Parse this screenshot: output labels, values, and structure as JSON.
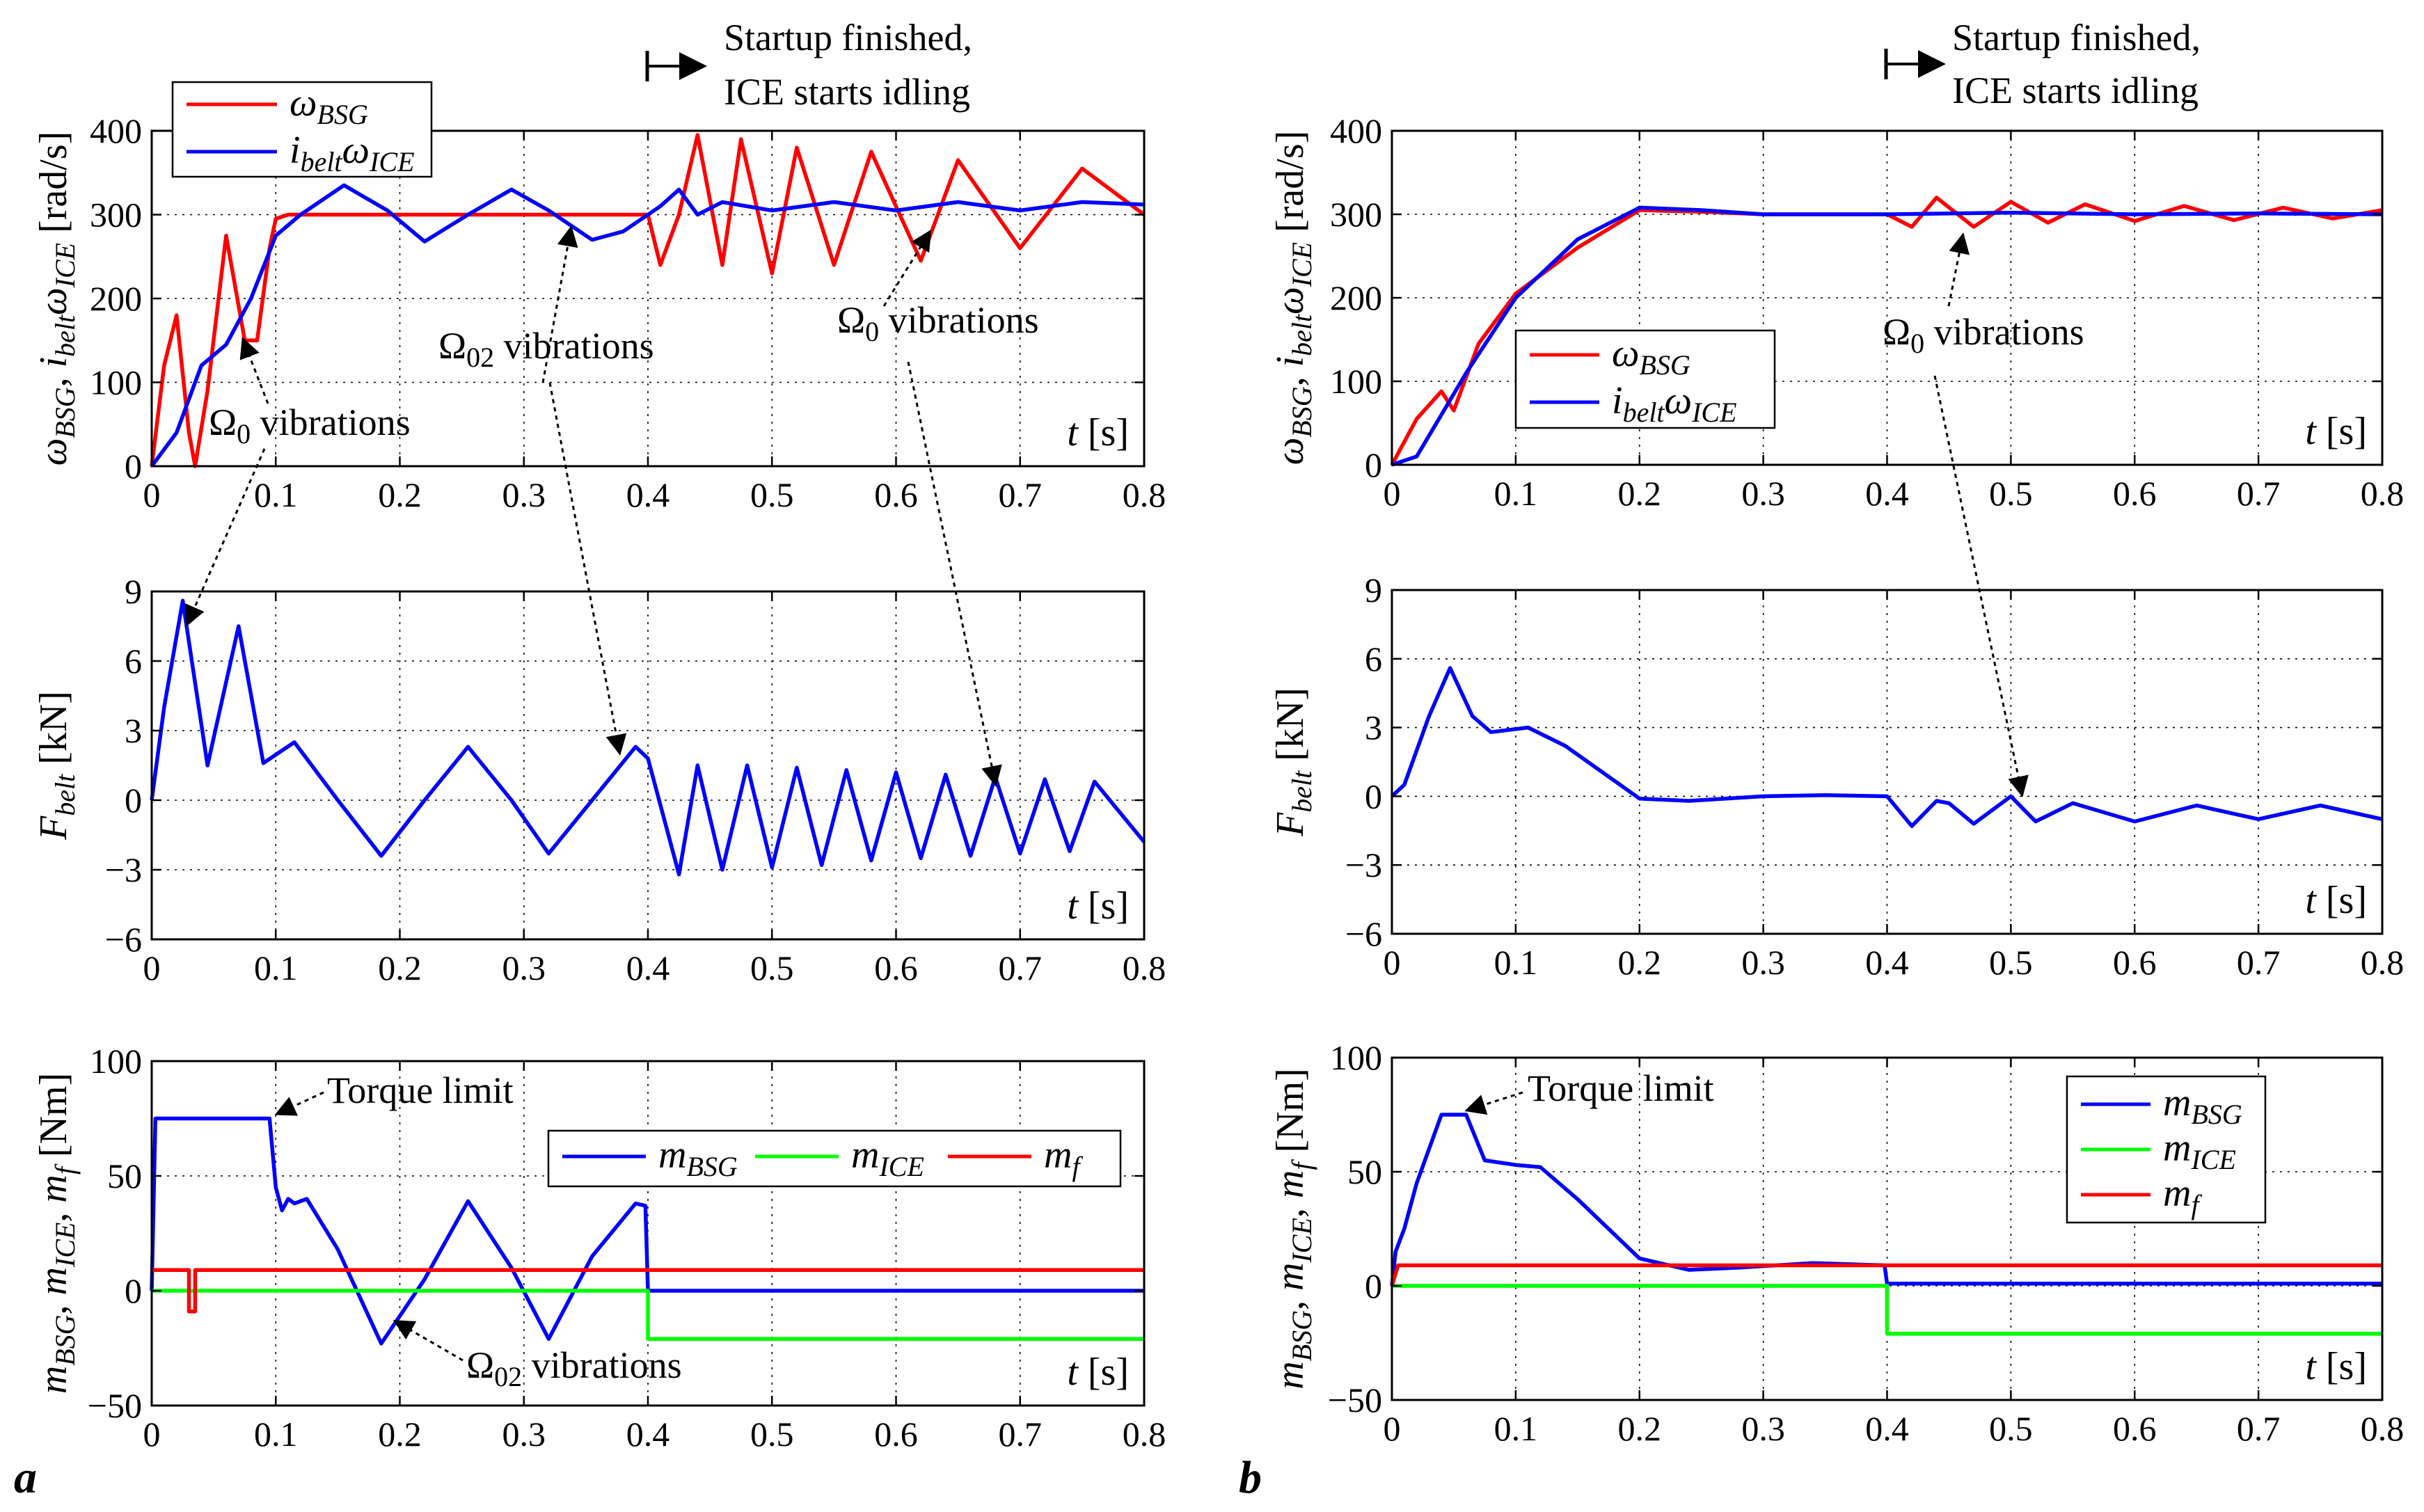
{
  "chart_data": [
    {
      "panel": "a",
      "type": "line",
      "title": "",
      "xlabel": "t [s]",
      "ylabel": "ωBSG, ibeltωICE [rad/s]",
      "xlim": [
        0,
        0.8
      ],
      "ylim": [
        0,
        400
      ],
      "xticks": [
        "0",
        "0.1",
        "0.2",
        "0.3",
        "0.4",
        "0.5",
        "0.6",
        "0.7",
        "0.8"
      ],
      "yticks": [
        "0",
        "100",
        "200",
        "300",
        "400"
      ],
      "grid": true,
      "legend": "top-left",
      "colors": {
        "red": "#ff0000",
        "blue": "#0000ff"
      },
      "series": [
        {
          "name": "ωBSG",
          "color": "#ff0000",
          "x": [
            0,
            0.01,
            0.02,
            0.03,
            0.035,
            0.045,
            0.06,
            0.075,
            0.085,
            0.095,
            0.1,
            0.11,
            0.2,
            0.3,
            0.395,
            0.4,
            0.41,
            0.425,
            0.44,
            0.46,
            0.475,
            0.5,
            0.52,
            0.55,
            0.58,
            0.62,
            0.65,
            0.7,
            0.75,
            0.8
          ],
          "values": [
            0,
            120,
            180,
            40,
            0,
            90,
            275,
            150,
            150,
            260,
            295,
            300,
            300,
            300,
            300,
            300,
            240,
            300,
            395,
            240,
            390,
            230,
            380,
            240,
            375,
            245,
            365,
            260,
            355,
            300
          ]
        },
        {
          "name": "ibeltωICE",
          "color": "#0000ff",
          "x": [
            0,
            0.02,
            0.04,
            0.06,
            0.08,
            0.1,
            0.12,
            0.155,
            0.19,
            0.22,
            0.255,
            0.29,
            0.32,
            0.355,
            0.38,
            0.4,
            0.41,
            0.425,
            0.44,
            0.46,
            0.5,
            0.55,
            0.6,
            0.65,
            0.7,
            0.75,
            0.8
          ],
          "values": [
            0,
            40,
            120,
            145,
            200,
            275,
            300,
            335,
            305,
            268,
            300,
            330,
            305,
            270,
            280,
            300,
            310,
            330,
            300,
            315,
            305,
            315,
            305,
            315,
            305,
            315,
            312
          ]
        }
      ],
      "annotations": [
        "Startup finished,",
        "ICE starts idling",
        "Ω0 vibrations",
        "Ω02 vibrations",
        "Ω0 vibrations"
      ]
    },
    {
      "panel": "a",
      "type": "line",
      "xlabel": "t [s]",
      "ylabel": "Fbelt [kN]",
      "xlim": [
        0,
        0.8
      ],
      "ylim": [
        -6,
        9
      ],
      "xticks": [
        "0",
        "0.1",
        "0.2",
        "0.3",
        "0.4",
        "0.5",
        "0.6",
        "0.7",
        "0.8"
      ],
      "yticks": [
        "−6",
        "−3",
        "0",
        "3",
        "6",
        "9"
      ],
      "grid": true,
      "series": [
        {
          "name": "Fbelt",
          "color": "#0000ff",
          "x": [
            0,
            0.01,
            0.025,
            0.045,
            0.07,
            0.09,
            0.115,
            0.15,
            0.185,
            0.22,
            0.255,
            0.29,
            0.32,
            0.355,
            0.39,
            0.4,
            0.425,
            0.44,
            0.46,
            0.48,
            0.5,
            0.52,
            0.54,
            0.56,
            0.58,
            0.6,
            0.62,
            0.64,
            0.66,
            0.68,
            0.7,
            0.72,
            0.74,
            0.76,
            0.8
          ],
          "values": [
            0,
            4,
            8.6,
            1.5,
            7.5,
            1.6,
            2.5,
            0,
            -2.4,
            0,
            2.3,
            0,
            -2.3,
            0,
            2.3,
            1.8,
            -3.2,
            1.5,
            -3,
            1.5,
            -2.9,
            1.4,
            -2.8,
            1.3,
            -2.6,
            1.2,
            -2.5,
            1.1,
            -2.4,
            1,
            -2.3,
            0.9,
            -2.2,
            0.8,
            -1.8
          ]
        }
      ]
    },
    {
      "panel": "a",
      "type": "line",
      "xlabel": "t [s]",
      "ylabel": "mBSG, mICE, mf [Nm]",
      "xlim": [
        0,
        0.8
      ],
      "ylim": [
        -50,
        100
      ],
      "xticks": [
        "0",
        "0.1",
        "0.2",
        "0.3",
        "0.4",
        "0.5",
        "0.6",
        "0.7",
        "0.8"
      ],
      "yticks": [
        "−50",
        "0",
        "50",
        "100"
      ],
      "grid": true,
      "legend": "center-right",
      "series": [
        {
          "name": "mBSG",
          "color": "#0000ff",
          "x": [
            0,
            0.003,
            0.095,
            0.1,
            0.105,
            0.11,
            0.115,
            0.125,
            0.15,
            0.185,
            0.22,
            0.255,
            0.29,
            0.32,
            0.355,
            0.39,
            0.398,
            0.4,
            0.8
          ],
          "values": [
            0,
            75,
            75,
            45,
            35,
            40,
            38,
            40,
            18,
            -23,
            5,
            39,
            10,
            -21,
            15,
            38,
            37,
            0,
            0
          ]
        },
        {
          "name": "mICE",
          "color": "#00ff00",
          "x": [
            0,
            0.4,
            0.4,
            0.8
          ],
          "values": [
            0,
            0,
            -21,
            -21
          ]
        },
        {
          "name": "mf",
          "color": "#ff0000",
          "x": [
            0,
            0.03,
            0.03,
            0.035,
            0.035,
            0.8
          ],
          "values": [
            9,
            9,
            -9,
            -9,
            9,
            9
          ]
        }
      ],
      "annotations": [
        "Torque limit",
        "Ω02 vibrations"
      ]
    },
    {
      "panel": "b",
      "type": "line",
      "xlabel": "t [s]",
      "ylabel": "ωBSG, ibeltωICE [rad/s]",
      "xlim": [
        0,
        0.8
      ],
      "ylim": [
        0,
        400
      ],
      "xticks": [
        "0",
        "0.1",
        "0.2",
        "0.3",
        "0.4",
        "0.5",
        "0.6",
        "0.7",
        "0.8"
      ],
      "yticks": [
        "0",
        "100",
        "200",
        "300",
        "400"
      ],
      "grid": true,
      "legend": "center-left",
      "series": [
        {
          "name": "ωBSG",
          "color": "#ff0000",
          "x": [
            0,
            0.02,
            0.04,
            0.05,
            0.07,
            0.1,
            0.15,
            0.2,
            0.25,
            0.3,
            0.4,
            0.42,
            0.44,
            0.47,
            0.5,
            0.53,
            0.56,
            0.6,
            0.64,
            0.68,
            0.72,
            0.76,
            0.8
          ],
          "values": [
            0,
            55,
            88,
            65,
            145,
            205,
            260,
            305,
            303,
            300,
            300,
            285,
            320,
            285,
            315,
            290,
            312,
            292,
            310,
            293,
            308,
            295,
            305
          ]
        },
        {
          "name": "ibeltωICE",
          "color": "#0000ff",
          "x": [
            0,
            0.02,
            0.04,
            0.06,
            0.1,
            0.15,
            0.2,
            0.25,
            0.3,
            0.4,
            0.5,
            0.6,
            0.7,
            0.8
          ],
          "values": [
            0,
            10,
            60,
            110,
            200,
            270,
            308,
            305,
            300,
            300,
            302,
            300,
            301,
            300
          ]
        }
      ],
      "annotations": [
        "Startup finished,",
        "ICE starts idling",
        "Ω0 vibrations"
      ]
    },
    {
      "panel": "b",
      "type": "line",
      "xlabel": "t [s]",
      "ylabel": "Fbelt [kN]",
      "xlim": [
        0,
        0.8
      ],
      "ylim": [
        -6,
        9
      ],
      "xticks": [
        "0",
        "0.1",
        "0.2",
        "0.3",
        "0.4",
        "0.5",
        "0.6",
        "0.7",
        "0.8"
      ],
      "yticks": [
        "−6",
        "−3",
        "0",
        "3",
        "6",
        "9"
      ],
      "grid": true,
      "series": [
        {
          "name": "Fbelt",
          "color": "#0000ff",
          "x": [
            0,
            0.01,
            0.03,
            0.047,
            0.065,
            0.08,
            0.11,
            0.14,
            0.2,
            0.24,
            0.3,
            0.35,
            0.4,
            0.42,
            0.44,
            0.45,
            0.47,
            0.5,
            0.52,
            0.55,
            0.6,
            0.65,
            0.7,
            0.75,
            0.8
          ],
          "values": [
            0,
            0.5,
            3.5,
            5.6,
            3.5,
            2.8,
            3.0,
            2.2,
            -0.1,
            -0.2,
            0,
            0.05,
            0,
            -1.3,
            -0.2,
            -0.3,
            -1.2,
            0,
            -1.1,
            -0.3,
            -1.1,
            -0.4,
            -1.0,
            -0.4,
            -1.0
          ]
        }
      ]
    },
    {
      "panel": "b",
      "type": "line",
      "xlabel": "t [s]",
      "ylabel": "mBSG, mICE, mf [Nm]",
      "xlim": [
        0,
        0.8
      ],
      "ylim": [
        -50,
        100
      ],
      "xticks": [
        "0",
        "0.1",
        "0.2",
        "0.3",
        "0.4",
        "0.5",
        "0.6",
        "0.7",
        "0.8"
      ],
      "yticks": [
        "−50",
        "0",
        "50",
        "100"
      ],
      "grid": true,
      "legend": "top-right",
      "series": [
        {
          "name": "mBSG",
          "color": "#0000ff",
          "x": [
            0,
            0.003,
            0.01,
            0.02,
            0.04,
            0.06,
            0.075,
            0.1,
            0.12,
            0.15,
            0.2,
            0.24,
            0.28,
            0.34,
            0.398,
            0.4,
            0.8
          ],
          "values": [
            0,
            15,
            25,
            45,
            75,
            75,
            55,
            53,
            52,
            38,
            12,
            7,
            8,
            10,
            9,
            1,
            1
          ]
        },
        {
          "name": "mICE",
          "color": "#00ff00",
          "x": [
            0,
            0.4,
            0.4,
            0.8
          ],
          "values": [
            0,
            0,
            -21,
            -21
          ]
        },
        {
          "name": "mf",
          "color": "#ff0000",
          "x": [
            0,
            0.005,
            0.8
          ],
          "values": [
            0,
            9,
            9
          ]
        }
      ],
      "annotations": [
        "Torque limit"
      ]
    }
  ],
  "panel_labels": [
    "a",
    "b"
  ]
}
